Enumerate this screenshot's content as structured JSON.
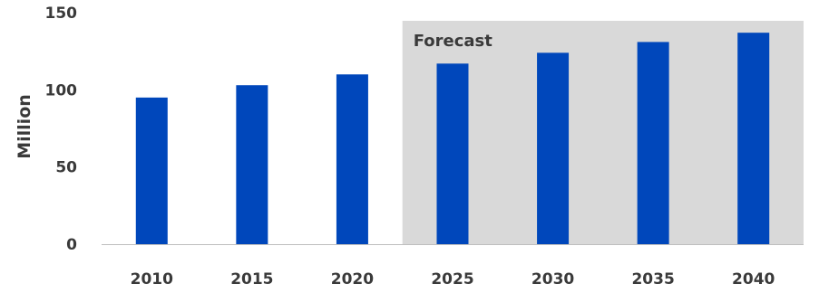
{
  "chart_data": {
    "type": "bar",
    "categories": [
      "2010",
      "2015",
      "2020",
      "2025",
      "2030",
      "2035",
      "2040"
    ],
    "series": [
      {
        "values": [
          95,
          103,
          110,
          117,
          124,
          131,
          137
        ]
      }
    ],
    "title": "",
    "xlabel": "",
    "ylabel": "Million",
    "ylim": [
      0,
      150
    ],
    "yticks": [
      "0",
      "50",
      "100",
      "150"
    ],
    "grid": false,
    "annotation": "Forecast",
    "forecast_from": "2025",
    "colors": {
      "bar": "#0047BB",
      "forecast_band": "#D9D9D9",
      "axis": "#BFBFBF"
    }
  }
}
